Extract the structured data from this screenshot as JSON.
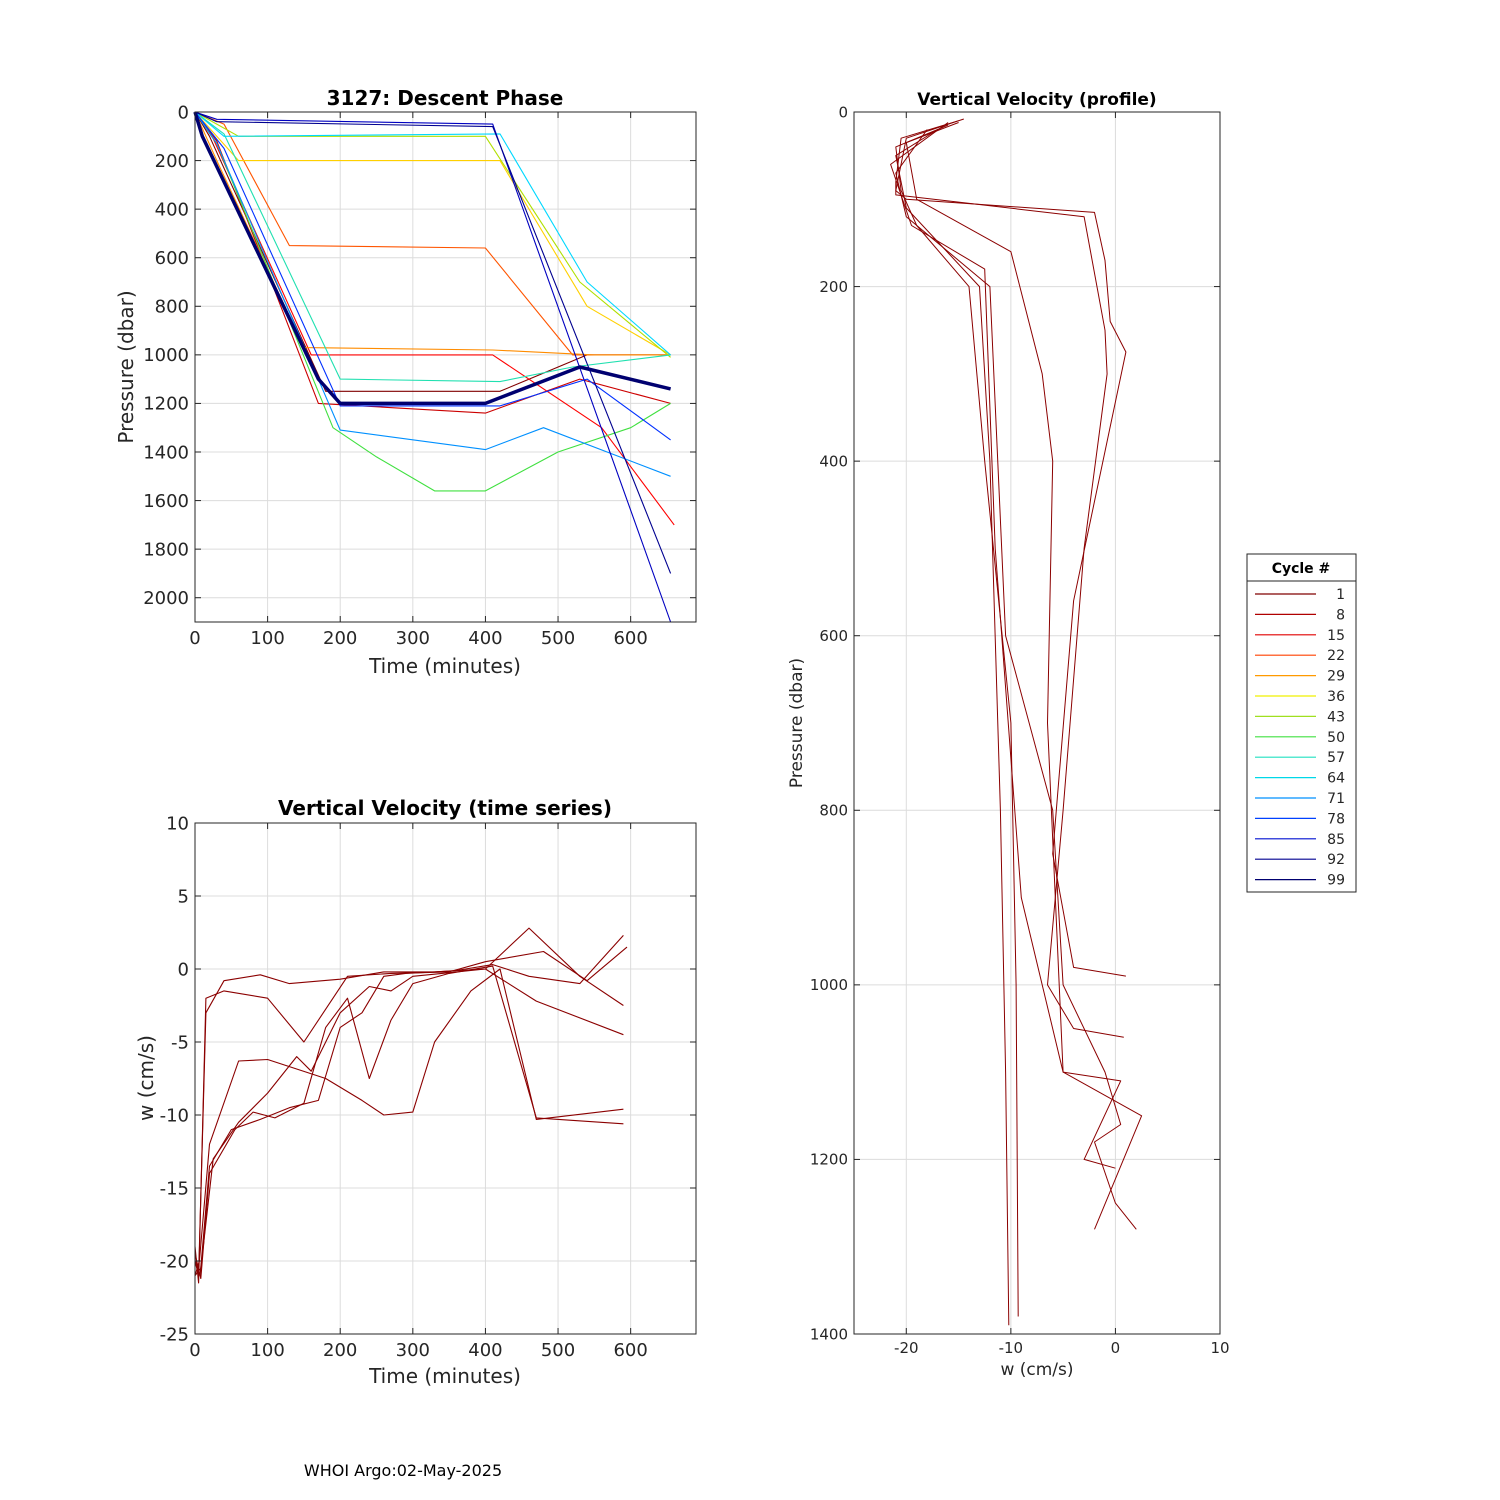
{
  "footer": "WHOI Argo:02-May-2025",
  "chart_data": [
    {
      "id": "descent",
      "type": "line",
      "title": "3127: Descent Phase",
      "xlabel": "Time (minutes)",
      "ylabel": "Pressure (dbar)",
      "xlim": [
        0,
        690
      ],
      "ylim": [
        0,
        2100
      ],
      "y_reversed": true,
      "grid": true,
      "xticks": [
        0,
        100,
        200,
        300,
        400,
        500,
        600
      ],
      "yticks": [
        0,
        200,
        400,
        600,
        800,
        1000,
        1200,
        1400,
        1600,
        1800,
        2000
      ],
      "series": [
        {
          "color": "#800000",
          "x": [
            0,
            20,
            180,
            420,
            540,
            655
          ],
          "y": [
            0,
            100,
            1150,
            1150,
            1000,
            1000
          ]
        },
        {
          "color": "#cc0000",
          "x": [
            0,
            30,
            170,
            400,
            530,
            655
          ],
          "y": [
            0,
            120,
            1200,
            1240,
            1100,
            1200
          ]
        },
        {
          "color": "#ff0000",
          "x": [
            0,
            25,
            160,
            410,
            560,
            660
          ],
          "y": [
            0,
            110,
            1000,
            1000,
            1300,
            1700
          ]
        },
        {
          "color": "#ff5500",
          "x": [
            0,
            40,
            130,
            400,
            520,
            650
          ],
          "y": [
            0,
            50,
            550,
            560,
            1000,
            1000
          ]
        },
        {
          "color": "#ff8c00",
          "x": [
            0,
            30,
            150,
            410,
            550,
            655
          ],
          "y": [
            0,
            200,
            970,
            980,
            1000,
            1000
          ]
        },
        {
          "color": "#ffd000",
          "x": [
            0,
            60,
            420,
            540,
            655
          ],
          "y": [
            0,
            200,
            200,
            800,
            1000
          ]
        },
        {
          "color": "#b0e000",
          "x": [
            0,
            60,
            400,
            530,
            655
          ],
          "y": [
            0,
            100,
            100,
            700,
            1010
          ]
        },
        {
          "color": "#40e040",
          "x": [
            0,
            30,
            190,
            250,
            330,
            400,
            500,
            600,
            655
          ],
          "y": [
            0,
            130,
            1300,
            1420,
            1560,
            1560,
            1400,
            1300,
            1200
          ]
        },
        {
          "color": "#20e0b0",
          "x": [
            0,
            40,
            200,
            420,
            520,
            655
          ],
          "y": [
            0,
            90,
            1100,
            1110,
            1050,
            1000
          ]
        },
        {
          "color": "#00d8ff",
          "x": [
            0,
            40,
            420,
            540,
            655
          ],
          "y": [
            0,
            100,
            90,
            700,
            1000
          ]
        },
        {
          "color": "#0090ff",
          "x": [
            0,
            30,
            200,
            400,
            480,
            655
          ],
          "y": [
            0,
            130,
            1310,
            1390,
            1300,
            1500
          ]
        },
        {
          "color": "#0030ff",
          "x": [
            0,
            40,
            200,
            420,
            540,
            655
          ],
          "y": [
            0,
            150,
            1210,
            1210,
            1100,
            1350
          ]
        },
        {
          "color": "#0000c0",
          "x": [
            0,
            30,
            410,
            655
          ],
          "y": [
            0,
            30,
            50,
            2100
          ]
        },
        {
          "color": "#000070",
          "x": [
            0,
            10,
            170,
            200,
            400,
            530,
            655
          ],
          "y": [
            0,
            100,
            1100,
            1200,
            1200,
            1050,
            1140
          ],
          "width": 3.5
        },
        {
          "color": "#000090",
          "x": [
            0,
            30,
            410,
            655
          ],
          "y": [
            0,
            40,
            60,
            1900
          ]
        }
      ]
    },
    {
      "id": "vel_time",
      "type": "line",
      "title": "Vertical Velocity (time series)",
      "xlabel": "Time (minutes)",
      "ylabel": "w (cm/s)",
      "xlim": [
        0,
        690
      ],
      "ylim": [
        -25,
        10
      ],
      "grid": true,
      "xticks": [
        0,
        100,
        200,
        300,
        400,
        500,
        600
      ],
      "yticks": [
        10,
        5,
        0,
        -5,
        -10,
        -15,
        -20,
        -25
      ],
      "series": [
        {
          "color": "#8b0000",
          "x": [
            0,
            5,
            15,
            40,
            90,
            130,
            200,
            260,
            330,
            400,
            460,
            530,
            590
          ],
          "y": [
            -20,
            -21,
            -3,
            -0.8,
            -0.4,
            -1,
            -0.7,
            -0.2,
            -0.2,
            0,
            2.8,
            -0.5,
            -2.5
          ]
        },
        {
          "color": "#8b0000",
          "x": [
            0,
            5,
            15,
            40,
            100,
            150,
            210,
            270,
            350,
            400,
            480,
            540,
            595
          ],
          "y": [
            -19,
            -21.5,
            -2,
            -1.5,
            -2,
            -5,
            -0.5,
            -0.3,
            -0.2,
            0.5,
            1.2,
            -0.8,
            1.5
          ]
        },
        {
          "color": "#8b0000",
          "x": [
            0,
            6,
            20,
            60,
            100,
            180,
            230,
            260,
            300,
            330,
            380,
            420,
            470,
            590
          ],
          "y": [
            -21,
            -20,
            -12,
            -6.3,
            -6.2,
            -7.5,
            -9,
            -10,
            -9.8,
            -5,
            -1.5,
            0,
            -10.3,
            -9.6
          ]
        },
        {
          "color": "#8b0000",
          "x": [
            0,
            8,
            25,
            60,
            100,
            140,
            160,
            200,
            240,
            270,
            300,
            340,
            400,
            470,
            590
          ],
          "y": [
            -21,
            -20.5,
            -13,
            -10.5,
            -8.5,
            -6,
            -7,
            -3,
            -1.2,
            -1.5,
            -0.5,
            -0.3,
            0,
            -2.2,
            -4.5
          ]
        },
        {
          "color": "#8b0000",
          "x": [
            0,
            7,
            20,
            50,
            90,
            130,
            170,
            200,
            230,
            260,
            290,
            330,
            360,
            410,
            460,
            530,
            590
          ],
          "y": [
            -20,
            -21,
            -13.5,
            -11,
            -10.3,
            -9.5,
            -9,
            -4,
            -3,
            -0.5,
            -0.3,
            -0.2,
            -0.1,
            0.3,
            -0.5,
            -1,
            2.3
          ]
        },
        {
          "color": "#8b0000",
          "x": [
            0,
            8,
            20,
            55,
            80,
            110,
            150,
            180,
            210,
            240,
            270,
            300,
            350,
            410,
            470,
            590
          ],
          "y": [
            -19.5,
            -21.2,
            -14,
            -11,
            -9.8,
            -10.2,
            -9.2,
            -4,
            -2,
            -7.5,
            -3.5,
            -1,
            -0.3,
            0.2,
            -10.2,
            -10.6
          ]
        }
      ]
    },
    {
      "id": "vel_profile",
      "type": "line",
      "title": "Vertical Velocity (profile)",
      "xlabel": "w (cm/s)",
      "ylabel": "Pressure (dbar)",
      "xlim": [
        -25,
        10
      ],
      "ylim": [
        0,
        1400
      ],
      "y_reversed": true,
      "grid": true,
      "xticks": [
        -20,
        -10,
        0,
        10
      ],
      "yticks": [
        0,
        200,
        400,
        600,
        800,
        1000,
        1200,
        1400
      ],
      "series": [
        {
          "color": "#8b0000",
          "x": [
            -14.5,
            -20,
            -21,
            -20,
            -2,
            -1,
            -0.5,
            1,
            -4,
            -6,
            -4,
            1
          ],
          "y": [
            8,
            30,
            90,
            100,
            115,
            170,
            240,
            275,
            560,
            850,
            980,
            990
          ]
        },
        {
          "color": "#8b0000",
          "x": [
            -15,
            -20.5,
            -21,
            -21,
            -3,
            -1,
            -0.8,
            -3,
            -5,
            -6.5,
            -4,
            0.8
          ],
          "y": [
            10,
            30,
            80,
            95,
            120,
            250,
            300,
            500,
            800,
            1000,
            1050,
            1060
          ]
        },
        {
          "color": "#8b0000",
          "x": [
            -16,
            -21,
            -20.5,
            -19,
            -14,
            -12.5,
            -10,
            -9.5,
            -9.3
          ],
          "y": [
            15,
            40,
            90,
            130,
            200,
            400,
            700,
            1000,
            1380
          ]
        },
        {
          "color": "#8b0000",
          "x": [
            -17,
            -21,
            -20,
            -13,
            -12,
            -11,
            -10.5,
            -10.2
          ],
          "y": [
            20,
            50,
            110,
            200,
            400,
            800,
            1100,
            1390
          ]
        },
        {
          "color": "#8b0000",
          "x": [
            -16,
            -21.5,
            -19.5,
            -12.5,
            -11.5,
            -9,
            -5,
            -2,
            2.5,
            -2
          ],
          "y": [
            12,
            60,
            130,
            180,
            500,
            900,
            1100,
            1120,
            1150,
            1280
          ]
        },
        {
          "color": "#8b0000",
          "x": [
            -15,
            -20,
            -19,
            -10,
            -7,
            -6,
            -6.5,
            -5,
            0.5,
            -3,
            0
          ],
          "y": [
            12,
            35,
            100,
            160,
            300,
            400,
            700,
            1100,
            1110,
            1200,
            1210
          ]
        },
        {
          "color": "#8b0000",
          "x": [
            -18,
            -21,
            -20,
            -12,
            -10.5,
            -6,
            -5,
            -1,
            0.5,
            -2,
            0,
            2
          ],
          "y": [
            20,
            70,
            120,
            200,
            600,
            800,
            1000,
            1100,
            1160,
            1180,
            1250,
            1280
          ]
        }
      ]
    }
  ],
  "legend": {
    "title": "Cycle #",
    "entries": [
      {
        "label": "1",
        "color": "#800000"
      },
      {
        "label": "8",
        "color": "#b00000"
      },
      {
        "label": "15",
        "color": "#e00000"
      },
      {
        "label": "22",
        "color": "#ff4000"
      },
      {
        "label": "29",
        "color": "#ff9a00"
      },
      {
        "label": "36",
        "color": "#f0f000"
      },
      {
        "label": "43",
        "color": "#a0e020"
      },
      {
        "label": "50",
        "color": "#40e040"
      },
      {
        "label": "57",
        "color": "#20e0c0"
      },
      {
        "label": "64",
        "color": "#00d8e8"
      },
      {
        "label": "71",
        "color": "#0090ff"
      },
      {
        "label": "78",
        "color": "#0040ff"
      },
      {
        "label": "85",
        "color": "#0010d0"
      },
      {
        "label": "92",
        "color": "#000090"
      },
      {
        "label": "99",
        "color": "#000070"
      }
    ]
  }
}
